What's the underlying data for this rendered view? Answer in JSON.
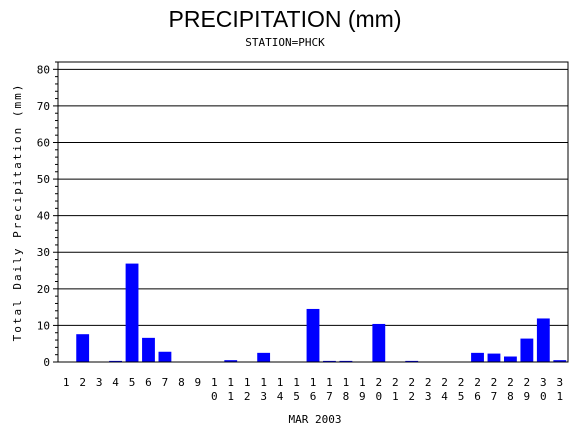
{
  "chart_data": {
    "type": "bar",
    "title": "PRECIPITATION (mm)",
    "subtitle": "STATION=PHCK",
    "xlabel": "MAR 2003",
    "ylabel": "Total Daily Precipitation (mm)",
    "categories": [
      "1",
      "2",
      "3",
      "4",
      "5",
      "6",
      "7",
      "8",
      "9",
      "10",
      "11",
      "12",
      "13",
      "14",
      "15",
      "16",
      "17",
      "18",
      "19",
      "20",
      "21",
      "22",
      "23",
      "24",
      "25",
      "26",
      "27",
      "28",
      "29",
      "30",
      "31"
    ],
    "values": [
      0,
      7.6,
      0,
      0.3,
      26.9,
      6.6,
      2.8,
      0,
      0,
      0,
      0.5,
      0,
      2.5,
      0,
      0,
      14.5,
      0.3,
      0.3,
      0,
      10.4,
      0,
      0.3,
      0,
      0,
      0,
      2.5,
      2.3,
      1.5,
      6.4,
      11.9,
      0.5
    ],
    "ylim": [
      0,
      82
    ],
    "yticks": [
      0,
      10,
      20,
      30,
      40,
      50,
      60,
      70,
      80
    ],
    "grid": true,
    "bar_color": "#0000ff",
    "legend": "none"
  }
}
